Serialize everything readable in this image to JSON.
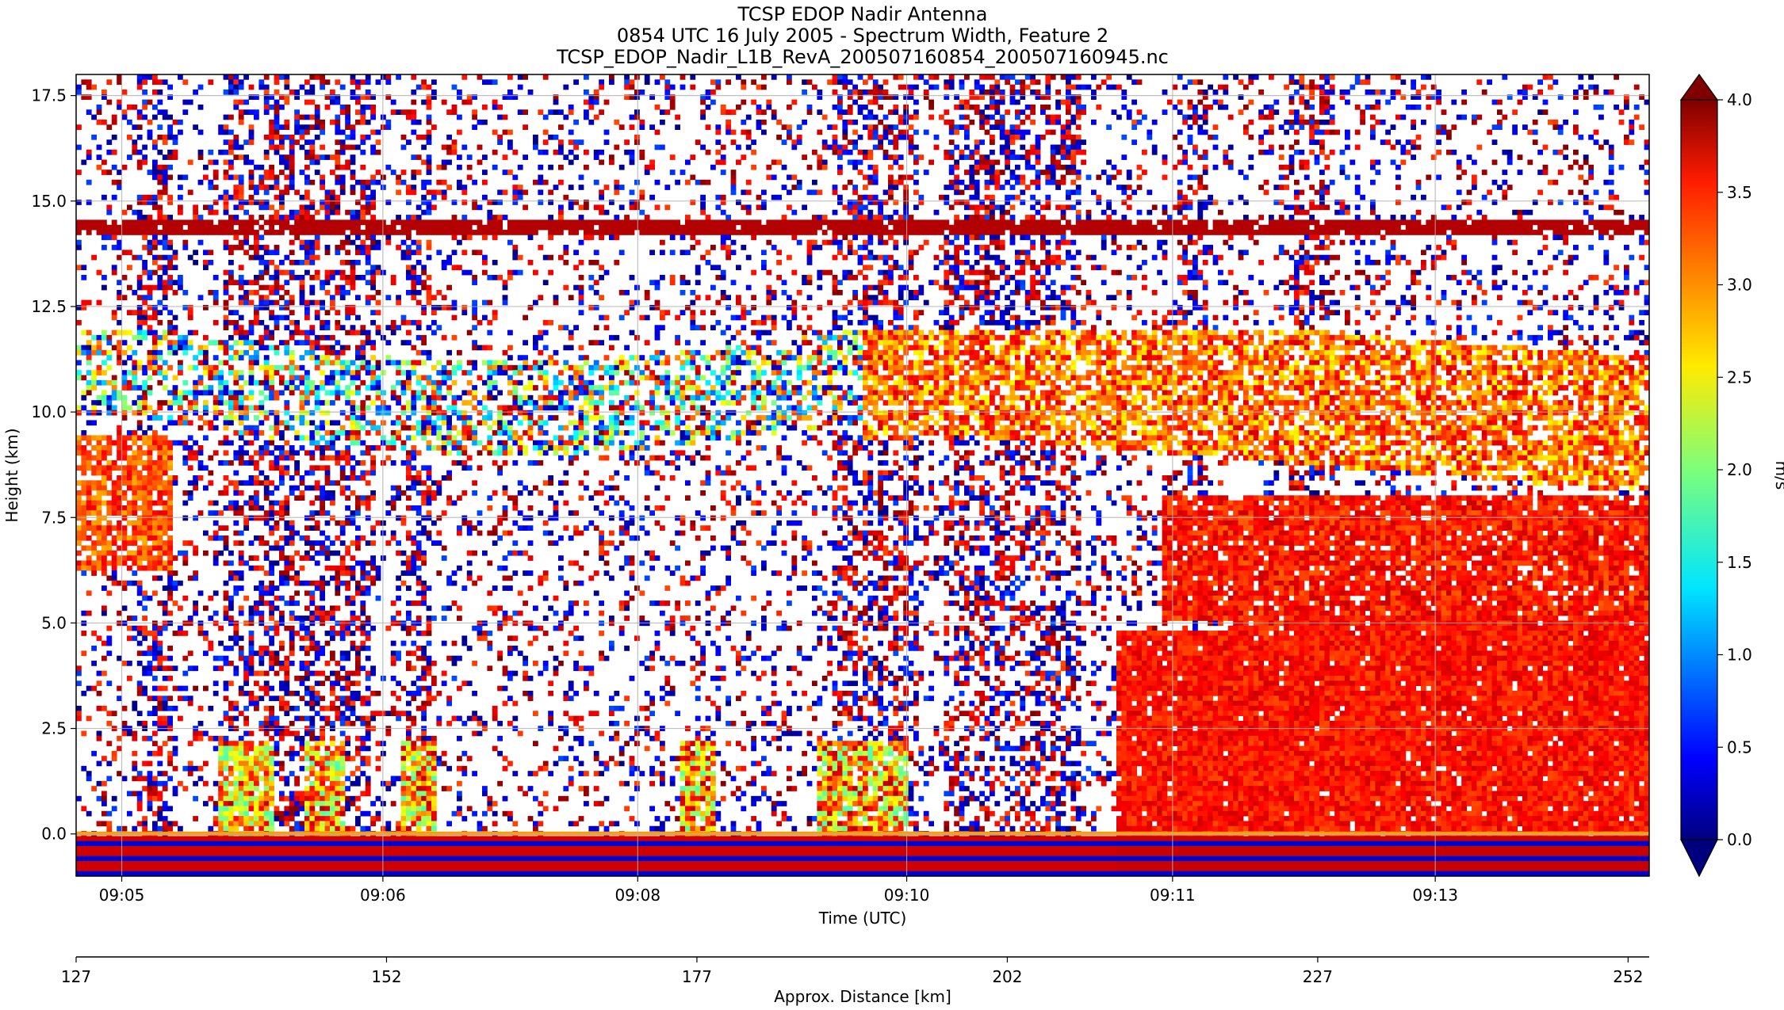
{
  "chart_data": {
    "type": "heatmap",
    "title_lines": [
      "TCSP EDOP Nadir Antenna",
      "0854 UTC 16 July 2005 - Spectrum Width, Feature 2",
      "TCSP_EDOP_Nadir_L1B_RevA_200507160854_200507160945.nc"
    ],
    "xlabel": "Time (UTC)",
    "ylabel": "Height (km)",
    "x2label": "Approx. Distance [km]",
    "xticks": [
      "09:05",
      "09:06",
      "09:08",
      "09:10",
      "09:11",
      "09:13"
    ],
    "xtick_fracs": [
      0.029,
      0.195,
      0.357,
      0.528,
      0.697,
      0.864
    ],
    "yticks": [
      "0.0",
      "2.5",
      "5.0",
      "7.5",
      "10.0",
      "12.5",
      "15.0",
      "17.5"
    ],
    "ytick_values": [
      0,
      2.5,
      5,
      7.5,
      10,
      12.5,
      15,
      17.5
    ],
    "ylim": [
      -1.0,
      18.0
    ],
    "x2ticks": [
      "127",
      "152",
      "177",
      "202",
      "227",
      "252"
    ],
    "x2tick_values": [
      127,
      152,
      177,
      202,
      227,
      252
    ],
    "x2lim": [
      127,
      253.7
    ],
    "colorbar": {
      "label": "m/s",
      "ticks": [
        "0.0",
        "0.5",
        "1.0",
        "1.5",
        "2.0",
        "2.5",
        "3.0",
        "3.5",
        "4.0"
      ],
      "tick_values": [
        0,
        0.5,
        1,
        1.5,
        2,
        2.5,
        3,
        3.5,
        4
      ],
      "vmin": 0,
      "vmax": 4,
      "colormap": "jet",
      "extend": "both"
    },
    "grid": true,
    "features": {
      "surface_height_km": 0.0,
      "upper_echo_line_km": 14.4,
      "convective_core_start_frac": 0.66,
      "anvil_top_km": 12.0,
      "melting_layer_km": 5.0
    }
  }
}
